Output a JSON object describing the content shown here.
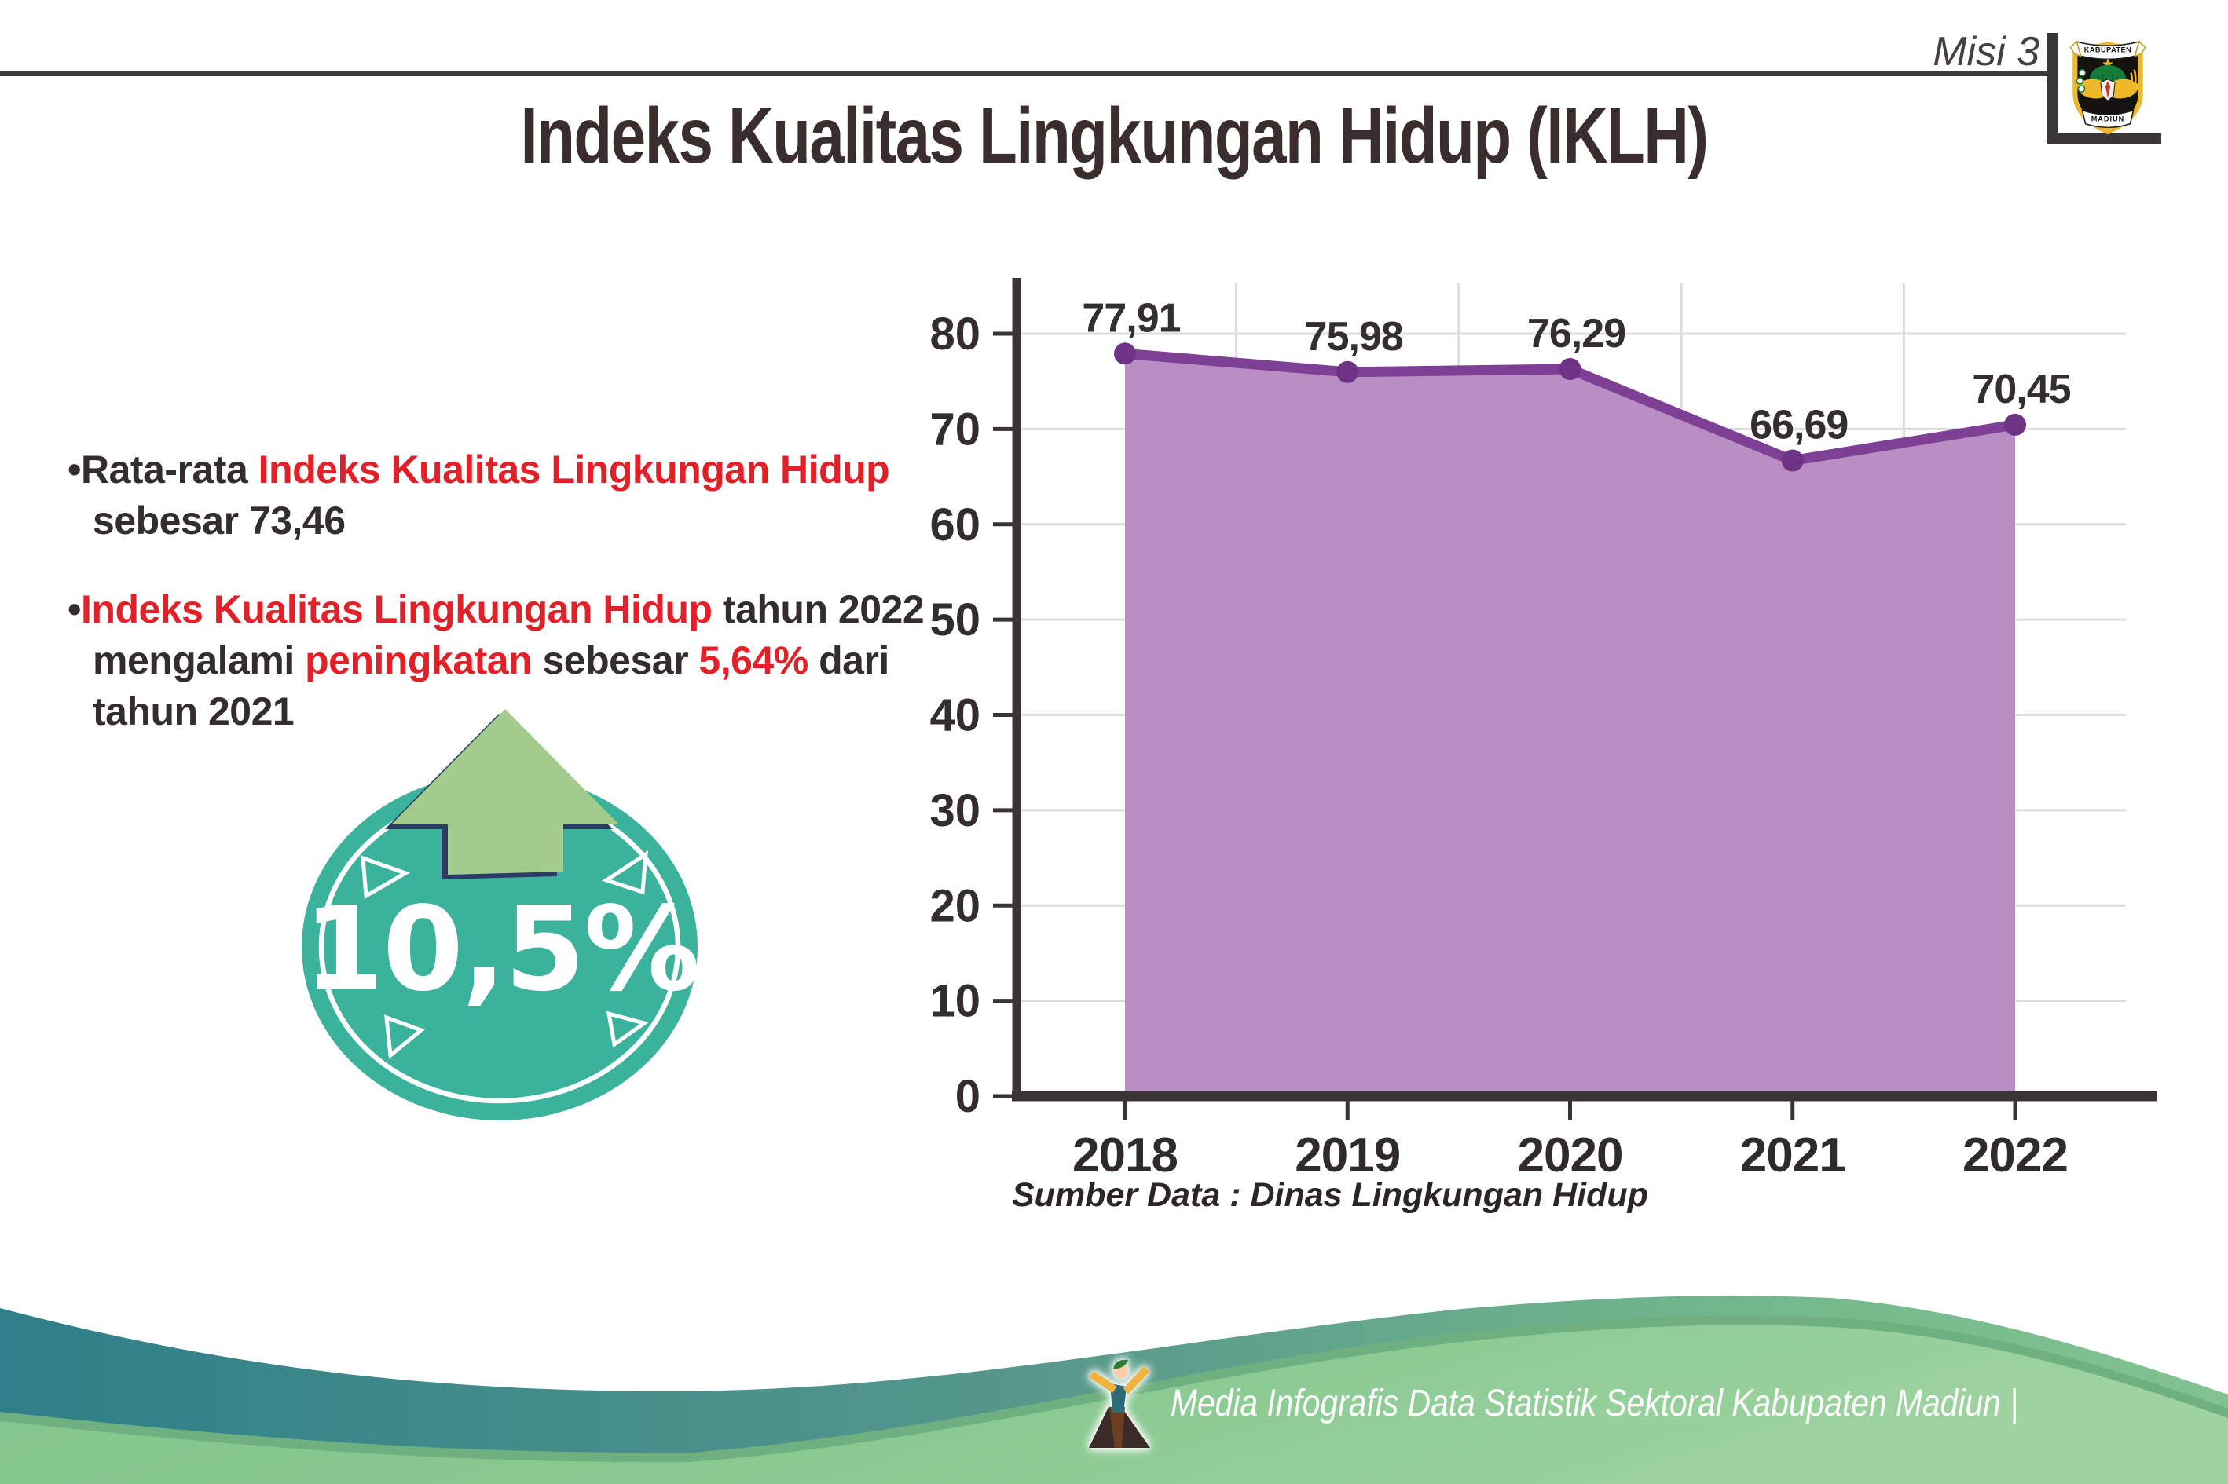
{
  "header": {
    "misi_label": "Misi 3",
    "logo_top_text": "KABUPATEN",
    "logo_bottom_text": "MADIUN"
  },
  "title": "Indeks Kualitas Lingkungan Hidup (IKLH)",
  "bullets": {
    "marker": "•",
    "item1": {
      "t1": "Rata-rata ",
      "t2": "Indeks Kualitas Lingkungan Hidup",
      "t3": " sebesar 73,46"
    },
    "item2": {
      "t1": "Indeks Kualitas Lingkungan Hidup",
      "t2": " tahun 2022 mengalami ",
      "t3": "peningkatan",
      "t4": " sebesar ",
      "t5": "5,64%",
      "t6": " dari tahun 2021"
    }
  },
  "badge": {
    "value": "10,5%"
  },
  "chart_data": {
    "type": "area",
    "title": "",
    "xlabel": "",
    "ylabel": "",
    "categories": [
      "2018",
      "2019",
      "2020",
      "2021",
      "2022"
    ],
    "values": [
      77.91,
      75.98,
      76.29,
      66.69,
      70.45
    ],
    "point_labels": [
      "77,91",
      "75,98",
      "76,29",
      "66,69",
      "70,45"
    ],
    "ylim": [
      0,
      80
    ],
    "yticks": [
      0,
      10,
      20,
      30,
      40,
      50,
      60,
      70,
      80
    ],
    "grid": true,
    "legend": "none",
    "fill_color": "#bb8ec3",
    "line_color": "#7e4094",
    "marker_color": "#6e3384",
    "source_note": "Sumber Data : Dinas Lingkungan Hidup"
  },
  "footer": {
    "credit": "Media Infografis Data Statistik Sektoral Kabupaten Madiun |"
  },
  "colors": {
    "accent_red": "#e31f27",
    "text_dark": "#332d2e",
    "badge_teal": "#3bb29b",
    "arrow_green": "#a3cb8d",
    "arrow_outline": "#2c3a66",
    "band_teal": "#2e7f89",
    "band_green": "#7fc18f",
    "body_green": "#87c88f"
  }
}
